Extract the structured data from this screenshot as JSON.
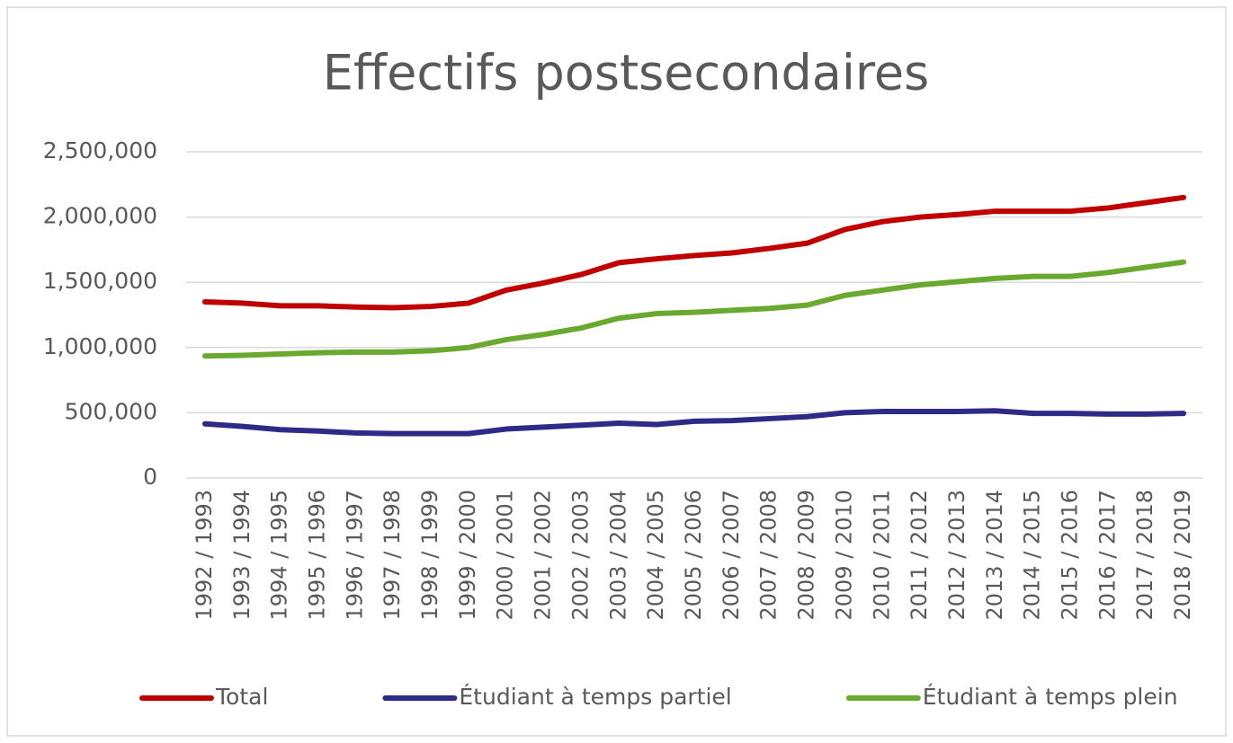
{
  "chart_data": {
    "type": "line",
    "title": "Effectifs postsecondaires",
    "categories": [
      "1992 / 1993",
      "1993 / 1994",
      "1994 / 1995",
      "1995 / 1996",
      "1996 / 1997",
      "1997 / 1998",
      "1998 / 1999",
      "1999 / 2000",
      "2000 / 2001",
      "2001 / 2002",
      "2002 / 2003",
      "2003 / 2004",
      "2004 / 2005",
      "2005 / 2006",
      "2006 / 2007",
      "2007 / 2008",
      "2008 / 2009",
      "2009 / 2010",
      "2010 / 2011",
      "2011 / 2012",
      "2012 / 2013",
      "2013 / 2014",
      "2014 / 2015",
      "2015 / 2016",
      "2016 / 2017",
      "2017 / 2018",
      "2018 / 2019"
    ],
    "series": [
      {
        "name": "Total",
        "color": "#c00000",
        "values": [
          1350000,
          1340000,
          1320000,
          1320000,
          1310000,
          1305000,
          1315000,
          1340000,
          1440000,
          1495000,
          1560000,
          1650000,
          1680000,
          1705000,
          1725000,
          1760000,
          1800000,
          1905000,
          1965000,
          2000000,
          2020000,
          2045000,
          2045000,
          2045000,
          2070000,
          2110000,
          2150000
        ]
      },
      {
        "name": "Étudiant à temps partiel",
        "color": "#2e2a87",
        "values": [
          415000,
          395000,
          370000,
          360000,
          345000,
          340000,
          340000,
          340000,
          375000,
          390000,
          405000,
          420000,
          410000,
          435000,
          440000,
          455000,
          470000,
          500000,
          510000,
          510000,
          510000,
          515000,
          495000,
          495000,
          490000,
          490000,
          495000
        ]
      },
      {
        "name": "Étudiant à temps plein",
        "color": "#6aa92f",
        "values": [
          935000,
          940000,
          950000,
          960000,
          965000,
          965000,
          975000,
          1000000,
          1060000,
          1100000,
          1150000,
          1225000,
          1260000,
          1270000,
          1285000,
          1300000,
          1325000,
          1400000,
          1440000,
          1480000,
          1505000,
          1530000,
          1545000,
          1545000,
          1575000,
          1615000,
          1655000
        ]
      }
    ],
    "ylim": [
      0,
      2500000
    ],
    "yticks": [
      0,
      {
        "value": 500000,
        "label": "500,000"
      },
      {
        "value": 1000000,
        "label": "1,000,000"
      },
      {
        "value": 1500000,
        "label": "1,500,000"
      },
      {
        "value": 2000000,
        "label": "2,000,000"
      },
      {
        "value": 2500000,
        "label": "2,500,000"
      }
    ],
    "grid": true,
    "legend": "bottom"
  }
}
